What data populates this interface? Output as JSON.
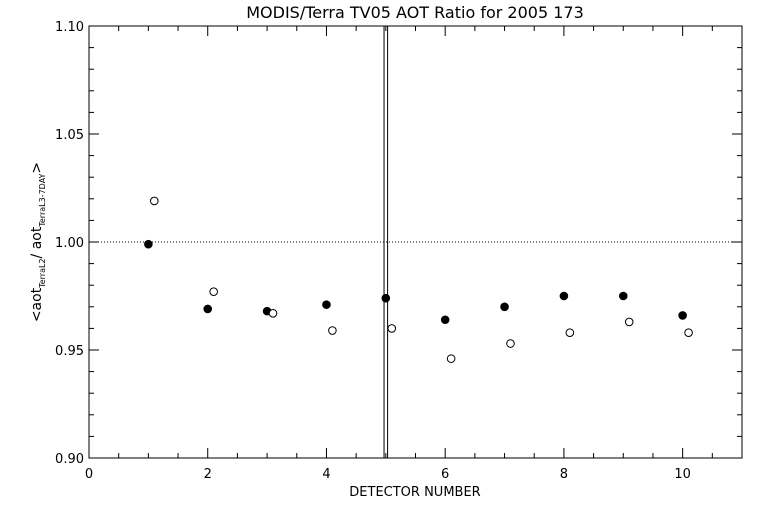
{
  "chart_data": {
    "type": "scatter",
    "title": "MODIS/Terra TV05 AOT Ratio for 2005 173",
    "xlabel": "DETECTOR NUMBER",
    "ylabel": {
      "prefix": "<aot",
      "sub1": "TerraL2",
      "middle": "/ aot",
      "sub2": "TerraL3-7DAY",
      "suffix": ">"
    },
    "xlim": [
      0,
      11
    ],
    "ylim": [
      0.9,
      1.1
    ],
    "xticks": [
      0,
      2,
      4,
      6,
      8,
      10
    ],
    "xtick_labels": [
      "0",
      "2",
      "4",
      "6",
      "8",
      "10"
    ],
    "yticks": [
      0.9,
      0.95,
      1.0,
      1.05,
      1.1
    ],
    "ytick_labels": [
      "0.90",
      "0.95",
      "1.00",
      "1.05",
      "1.10"
    ],
    "reference_line_y": 1.0,
    "vertical_lines_x": [
      4.97,
      5.03
    ],
    "series": [
      {
        "marker": "filled-circle",
        "x": [
          1,
          2,
          3,
          4,
          5,
          6,
          7,
          8,
          9,
          10
        ],
        "y": [
          0.999,
          0.969,
          0.968,
          0.971,
          0.974,
          0.964,
          0.97,
          0.975,
          0.975,
          0.966
        ]
      },
      {
        "marker": "open-circle",
        "x": [
          1.1,
          2.1,
          3.1,
          4.1,
          5.1,
          6.1,
          7.1,
          8.1,
          9.1,
          10.1
        ],
        "y": [
          1.019,
          0.977,
          0.967,
          0.959,
          0.96,
          0.946,
          0.953,
          0.958,
          0.963,
          0.958
        ]
      }
    ],
    "grid": false
  }
}
